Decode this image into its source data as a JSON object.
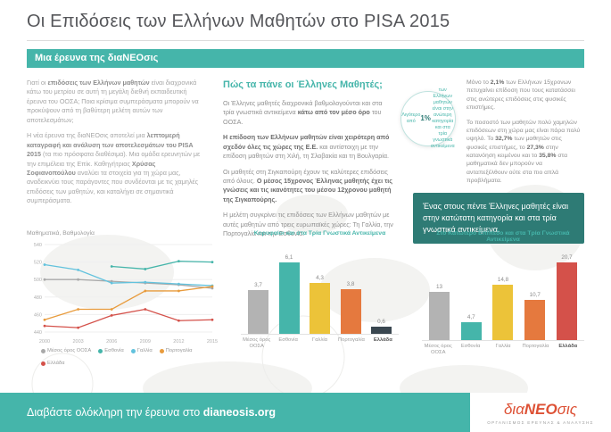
{
  "colors": {
    "accent": "#45b5aa",
    "accent_dark": "#2e7b75",
    "logo": "#dd5135"
  },
  "header": {
    "title": "Οι Επιδόσεις των Ελλήνων Μαθητών στο PISA 2015",
    "banner": "Μια έρευνα της διαΝΕΟσις"
  },
  "intro": {
    "p1_html": "Γιατί οι <b>επιδόσεις των Ελλήνων μαθητών</b> είναι διαχρονικά κάτω του μετρίου σε αυτή τη μεγάλη διεθνή εκπαιδευτική έρευνα του ΟΟΣΑ; Ποια κρίσιμα συμπεράσματα μπορούν να προκύψουν από τη βαθύτερη μελέτη αυτών των αποτελεσμάτων;",
    "p2_html": "Η νέα έρευνα της διαΝΕΟσις αποτελεί μια <b>λεπτομερή καταγραφή και ανάλυση των αποτελεσμάτων του PISA 2015</b> (τα πιο πρόσφατα διαθέσιμα). Μια ομάδα ερευνητών με την επιμέλεια της Επίκ. Καθηγήτριας <b>Χρύσας Σοφιανοπούλου</b> αναλύει τα στοιχεία για τη χώρα μας, αναδεικνύει τους παράγοντες που συνδέονται με τις χαμηλές επιδόσεις των μαθητών, και καταλήγει σε σημαντικά συμπεράσματα."
  },
  "middle": {
    "heading": "Πώς τα πάνε οι Έλληνες Μαθητές;",
    "p1_html": "Οι Έλληνες μαθητές διαχρονικά βαθμολογούνται και στα τρία γνωστικά αντικείμενα <b>κάτω από τον μέσο όρο</b> του ΟΟΣΑ.",
    "p2_html": "<b>Η επίδοση των Ελλήνων μαθητών είναι χειρότερη από σχεδόν όλες τις χώρες της Ε.Ε.</b> και αντίστοιχη με την επίδοση μαθητών στη Χιλή, τη Σλοβακία και τη Βουλγαρία.",
    "p3_html": "Οι μαθητές στη Σιγκαπούρη έχουν τις καλύτερες επιδόσεις από όλους. <b>Ο μέσος 15χρονος Έλληνας μαθητής έχει τις γνώσεις και τις ικανότητες του μέσου 12χρονου μαθητή της Σιγκαπούρης.</b>",
    "p4_html": "Η μελέτη συγκρίνει τις επιδόσεις των Ελλήνων μαθητών με αυτές μαθητών από τρεις ευρωπαϊκές χώρες: Τη Γαλλία, την Πορτογαλία και την Εσθονία."
  },
  "right": {
    "p1_html": "Μόνο το <b>2,1%</b> των Ελλήνων 15χρονων πετυχαίνει επίδοση που τους κατατάσσει στις ανώτερες επιδόσεις στις φυσικές επιστήμες.",
    "circle_html": "Λιγότερο από <b>1%</b> των Ελλήνων μαθητών είναι στην ανώτερη κατηγορία και στα τρία γνωστικά αντικείμενα",
    "p2_html": "Το ποσοστό των μαθητών πολύ χαμηλών επιδόσεων στη χώρα μας είναι πάρα πολύ υψηλό. Το <b>32,7%</b> των μαθητών στις φυσικές επιστήμες, το <b>27,3%</b> στην κατανόηση κειμένου και το <b>35,8%</b> στα μαθηματικά δεν μπορούν να ανταπεξέλθουν ούτε στα πιο απλά προβλήματα.",
    "callout": "Ένας στους πέντε Έλληνες μαθητές είναι στην κατώτατη κατηγορία και στα τρία γνωστικά αντικείμενα."
  },
  "chart_data": [
    {
      "type": "line",
      "title": "Μαθηματικά, Βαθμολογία",
      "x": [
        2000,
        2003,
        2006,
        2009,
        2012,
        2015
      ],
      "ylim": [
        440,
        540
      ],
      "yticks": [
        440,
        460,
        480,
        500,
        520,
        540
      ],
      "legend_position": "bottom",
      "series": [
        {
          "name": "Μέσος όρος ΟΟΣΑ",
          "color": "#a9a9a9",
          "values": [
            500,
            500,
            498,
            496,
            494,
            490
          ]
        },
        {
          "name": "Εσθονία",
          "color": "#45b5aa",
          "values": [
            null,
            null,
            515,
            512,
            521,
            520
          ]
        },
        {
          "name": "Γαλλία",
          "color": "#62c2dd",
          "values": [
            517,
            511,
            496,
            497,
            495,
            493
          ]
        },
        {
          "name": "Πορτογαλία",
          "color": "#e89b3c",
          "values": [
            454,
            466,
            466,
            487,
            487,
            492
          ]
        },
        {
          "name": "Ελλάδα",
          "color": "#d4514a",
          "values": [
            447,
            445,
            459,
            466,
            453,
            454
          ]
        }
      ]
    },
    {
      "type": "bar",
      "title": "Κορυφαίοι και στα Τρία Γνωστικά Αντικείμενα",
      "categories": [
        "Μέσος όρος ΟΟΣΑ",
        "Εσθονία",
        "Γαλλία",
        "Πορτογαλία",
        "Ελλάδα"
      ],
      "values": [
        3.7,
        6.1,
        4.3,
        3.8,
        0.6
      ],
      "labels": [
        "3,7",
        "6,1",
        "4,3",
        "3,8",
        "0,6"
      ],
      "colors": [
        "#b3b3b3",
        "#45b5aa",
        "#ecc339",
        "#e5793e",
        "#3a4750"
      ],
      "ylim": [
        0,
        7
      ]
    },
    {
      "type": "bar",
      "title": "Στο Κατώτερο Επίπεδο και στα Τρία Γνωστικά Αντικείμενα",
      "categories": [
        "Μέσος όρος ΟΟΣΑ",
        "Εσθονία",
        "Γαλλία",
        "Πορτογαλία",
        "Ελλάδα"
      ],
      "values": [
        13.0,
        4.7,
        14.8,
        10.7,
        20.7
      ],
      "labels": [
        "13",
        "4,7",
        "14,8",
        "10,7",
        "20,7"
      ],
      "colors": [
        "#b3b3b3",
        "#45b5aa",
        "#ecc339",
        "#e5793e",
        "#d4514a"
      ],
      "ylim": [
        0,
        22
      ]
    }
  ],
  "footer": {
    "cta_prefix": "Διαβάστε ολόκληρη την έρευνα στο ",
    "cta_link": "dianeosis.org",
    "logo_dia": "δια",
    "logo_neo": "ΝΕΟ",
    "logo_sis": "σις",
    "logo_sub": "ΟΡΓΑΝΙΣΜΟΣ ΕΡΕΥΝΑΣ & ΑΝΑΛΥΣΗΣ"
  }
}
